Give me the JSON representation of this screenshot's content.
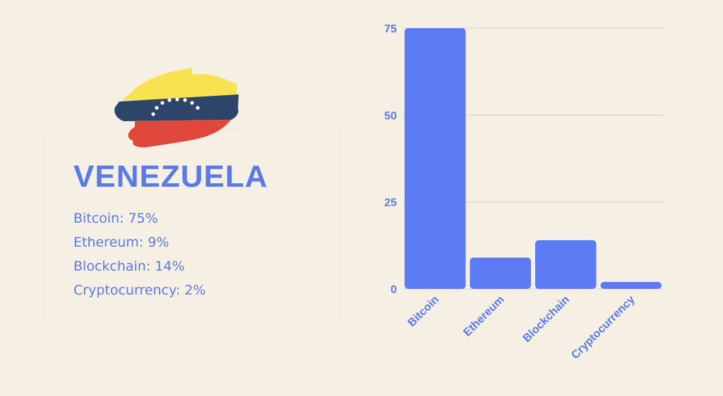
{
  "country": "VENEZUELA",
  "stats": [
    {
      "label": "Bitcoin: 75%"
    },
    {
      "label": "Ethereum: 9%"
    },
    {
      "label": "Blockchain: 14%"
    },
    {
      "label": "Cryptocurrency: 2%"
    }
  ],
  "colors": {
    "background": "#f5f0e3",
    "accent": "#5a7ae8",
    "bar": "#5b7af3",
    "flag_yellow": "#f7e34f",
    "flag_blue": "#2c4569",
    "flag_red": "#e0483b"
  },
  "chart_data": {
    "type": "bar",
    "categories": [
      "Bitcoin",
      "Ethereum",
      "Blockchain",
      "Cryptocurrency"
    ],
    "values": [
      75,
      9,
      14,
      2
    ],
    "ylim": [
      0,
      75
    ],
    "yticks": [
      "0",
      "25",
      "50",
      "75"
    ],
    "grid": true,
    "title": "",
    "xlabel": "",
    "ylabel": ""
  }
}
